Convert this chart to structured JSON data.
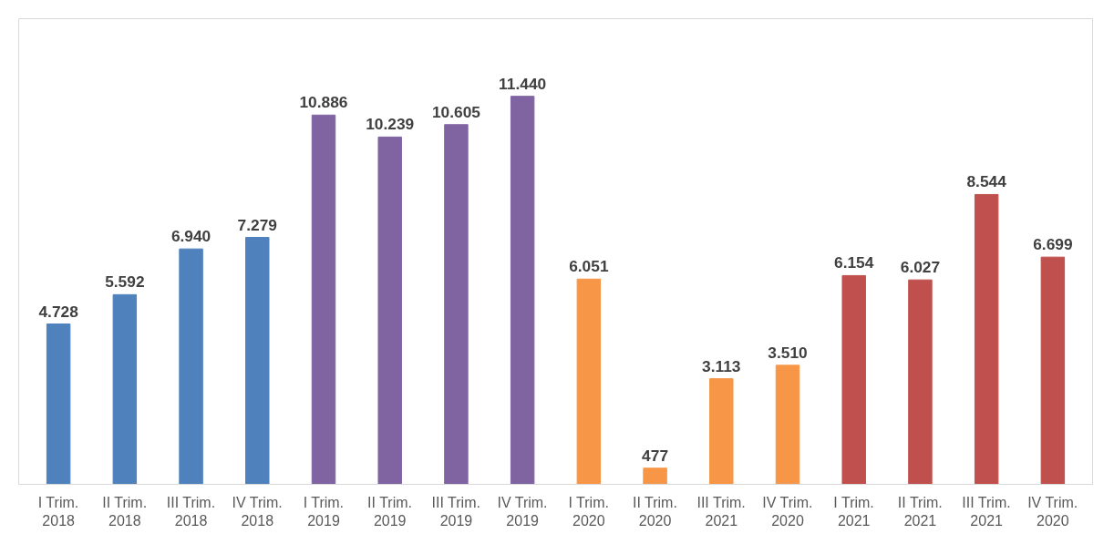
{
  "chart_data": {
    "type": "bar",
    "categories": [
      "I Trim.\n2018",
      "II Trim.\n2018",
      "III Trim.\n2018",
      "IV Trim.\n2018",
      "I Trim.\n2019",
      "II Trim.\n2019",
      "III Trim.\n2019",
      "IV Trim.\n2019",
      "I Trim.\n2020",
      "II Trim.\n2020",
      "III Trim.\n2021",
      "IV Trim.\n2020",
      "I Trim.\n2021",
      "II Trim.\n2021",
      "III Trim.\n2021",
      "IV Trim.\n2020"
    ],
    "values": [
      4728,
      5592,
      6940,
      7279,
      10886,
      10239,
      10605,
      11440,
      6051,
      477,
      3113,
      3510,
      6154,
      6027,
      8544,
      6699
    ],
    "value_labels": [
      "4.728",
      "5.592",
      "6.940",
      "7.279",
      "10.886",
      "10.239",
      "10.605",
      "11.440",
      "6.051",
      "477",
      "3.113",
      "3.510",
      "6.154",
      "6.027",
      "8.544",
      "6.699"
    ],
    "colors": [
      "#4f81bd",
      "#4f81bd",
      "#4f81bd",
      "#4f81bd",
      "#8064a2",
      "#8064a2",
      "#8064a2",
      "#8064a2",
      "#f79646",
      "#f79646",
      "#f79646",
      "#f79646",
      "#c0504d",
      "#c0504d",
      "#c0504d",
      "#c0504d"
    ]
  }
}
